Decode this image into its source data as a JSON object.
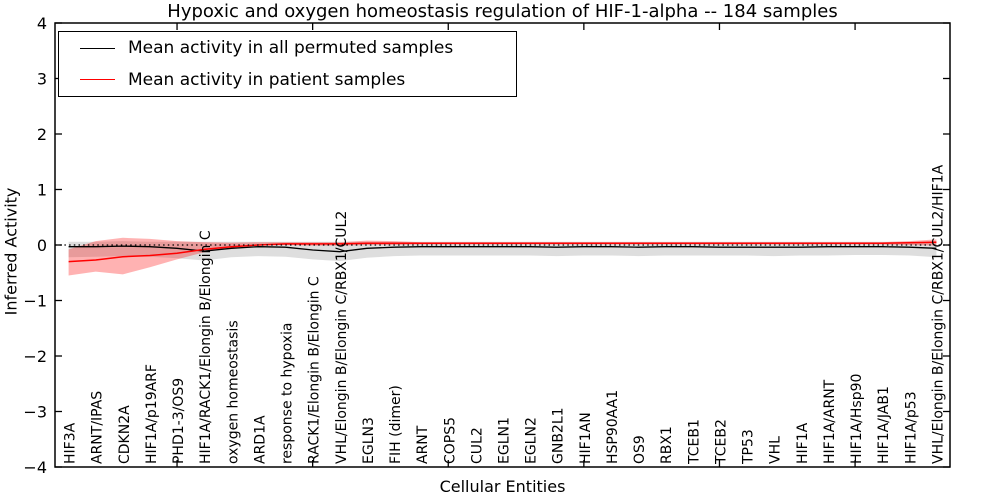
{
  "figure": {
    "title": "Hypoxic and oxygen homeostasis regulation of HIF-1-alpha -- 184 samples",
    "xlabel": "Cellular Entities",
    "ylabel": "Inferred Activity"
  },
  "legend": {
    "entries": [
      {
        "label": "Mean activity in all permuted samples",
        "color": "#000000"
      },
      {
        "label": "Mean activity in patient samples",
        "color": "#ff0000"
      }
    ]
  },
  "chart_data": {
    "type": "line",
    "title": "Hypoxic and oxygen homeostasis regulation of HIF-1-alpha -- 184 samples",
    "xlabel": "Cellular Entities",
    "ylabel": "Inferred Activity",
    "ylim": [
      -4,
      4
    ],
    "grid": false,
    "legend_position": "upper left",
    "background": "#ffffff",
    "axis_color": "#000000",
    "yticks": [
      {
        "value": 4,
        "label": "4"
      },
      {
        "value": 3,
        "label": "3"
      },
      {
        "value": 2,
        "label": "2"
      },
      {
        "value": 1,
        "label": "1"
      },
      {
        "value": 0,
        "label": "0"
      },
      {
        "value": -1,
        "label": "−1"
      },
      {
        "value": -2,
        "label": "−2"
      },
      {
        "value": -3,
        "label": "−3"
      },
      {
        "value": -4,
        "label": "−4"
      }
    ],
    "xtick_indices": [
      4,
      9,
      14,
      19,
      24,
      29
    ],
    "zero_line": {
      "y": 0,
      "style": "dotted",
      "color": "#000000"
    },
    "categories": [
      "HIF3A",
      "ARNT/IPAS",
      "CDKN2A",
      "HIF1A/p19ARF",
      "PHD1-3/OS9",
      "HIF1A/RACK1/Elongin B/Elongin C",
      "oxygen homeostasis",
      "ARD1A",
      "response to hypoxia",
      "RACK1/Elongin B/Elongin C",
      "VHL/Elongin B/Elongin C/RBX1/CUL2",
      "EGLN3",
      "FIH (dimer)",
      "ARNT",
      "COPS5",
      "CUL2",
      "EGLN1",
      "EGLN2",
      "GNB2L1",
      "HIF1AN",
      "HSP90AA1",
      "OS9",
      "RBX1",
      "TCEB1",
      "TCEB2",
      "TP53",
      "VHL",
      "HIF1A",
      "HIF1A/ARNT",
      "HIF1A/Hsp90",
      "HIF1A/JAB1",
      "HIF1A/p53",
      "VHL/Elongin B/Elongin C/RBX1/CUL2/HIF1A"
    ],
    "series": [
      {
        "name": "Mean activity in all permuted samples",
        "color": "#000000",
        "line_width": 1.3,
        "band_color": "#000000",
        "band_opacity": 0.13,
        "values": [
          -0.03,
          -0.03,
          -0.02,
          -0.03,
          -0.06,
          -0.11,
          -0.06,
          -0.03,
          -0.04,
          -0.09,
          -0.12,
          -0.06,
          -0.04,
          -0.03,
          -0.03,
          -0.03,
          -0.03,
          -0.03,
          -0.04,
          -0.03,
          -0.03,
          -0.04,
          -0.03,
          -0.03,
          -0.04,
          -0.04,
          -0.04,
          -0.04,
          -0.03,
          -0.03,
          -0.03,
          -0.04,
          -0.06
        ],
        "band_upper": [
          0.06,
          0.06,
          0.07,
          0.06,
          0.06,
          0.06,
          0.06,
          0.06,
          0.06,
          0.06,
          0.06,
          0.06,
          0.06,
          0.06,
          0.06,
          0.06,
          0.06,
          0.06,
          0.06,
          0.06,
          0.06,
          0.06,
          0.06,
          0.06,
          0.06,
          0.06,
          0.06,
          0.06,
          0.06,
          0.06,
          0.06,
          0.06,
          0.07
        ],
        "band_lower": [
          -0.22,
          -0.21,
          -0.2,
          -0.21,
          -0.24,
          -0.28,
          -0.22,
          -0.2,
          -0.21,
          -0.26,
          -0.29,
          -0.23,
          -0.2,
          -0.19,
          -0.19,
          -0.19,
          -0.19,
          -0.19,
          -0.2,
          -0.19,
          -0.19,
          -0.2,
          -0.19,
          -0.19,
          -0.19,
          -0.19,
          -0.2,
          -0.19,
          -0.19,
          -0.18,
          -0.18,
          -0.19,
          -0.22
        ]
      },
      {
        "name": "Mean activity in patient samples",
        "color": "#ff0000",
        "line_width": 1.5,
        "band_color": "#ff0000",
        "band_opacity": 0.3,
        "values": [
          -0.3,
          -0.27,
          -0.21,
          -0.19,
          -0.15,
          -0.08,
          -0.03,
          0.0,
          0.02,
          0.02,
          0.02,
          0.03,
          0.03,
          0.03,
          0.03,
          0.03,
          0.03,
          0.03,
          0.03,
          0.03,
          0.03,
          0.03,
          0.03,
          0.03,
          0.03,
          0.03,
          0.03,
          0.03,
          0.03,
          0.03,
          0.03,
          0.04,
          0.05
        ],
        "band_upper": [
          -0.08,
          0.07,
          0.13,
          0.11,
          0.07,
          0.05,
          0.04,
          0.05,
          0.05,
          0.05,
          0.05,
          0.08,
          0.07,
          0.05,
          0.05,
          0.05,
          0.05,
          0.05,
          0.05,
          0.05,
          0.05,
          0.05,
          0.05,
          0.05,
          0.05,
          0.05,
          0.05,
          0.05,
          0.05,
          0.05,
          0.05,
          0.07,
          0.1
        ],
        "band_lower": [
          -0.55,
          -0.48,
          -0.53,
          -0.4,
          -0.26,
          -0.13,
          -0.05,
          -0.01,
          0.0,
          -0.01,
          -0.01,
          0.0,
          0.0,
          0.01,
          0.01,
          0.01,
          0.01,
          0.01,
          0.01,
          0.01,
          0.01,
          0.01,
          0.01,
          0.01,
          0.01,
          0.01,
          0.01,
          0.01,
          0.01,
          0.01,
          0.01,
          0.0,
          -0.01
        ]
      }
    ]
  }
}
